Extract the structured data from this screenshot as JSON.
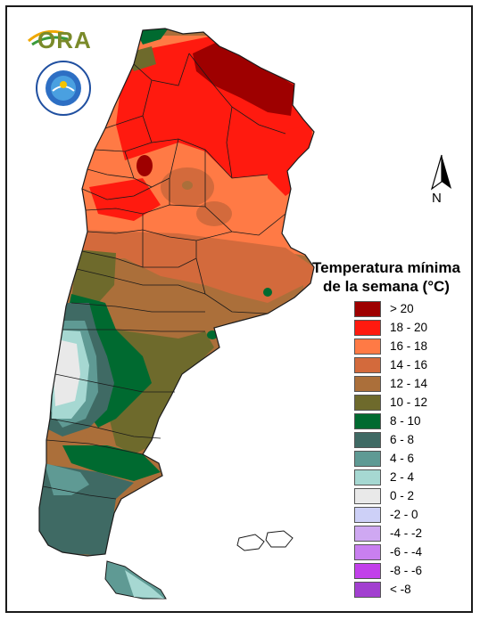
{
  "legend": {
    "title_line1": "Temperatura mínima",
    "title_line2": "de la semana (°C)",
    "items": [
      {
        "label": "> 20",
        "color": "#9e0000"
      },
      {
        "label": "18 - 20",
        "color": "#ff1a0f"
      },
      {
        "label": "16 - 18",
        "color": "#ff7a45"
      },
      {
        "label": "14 - 16",
        "color": "#d36a3c"
      },
      {
        "label": "12 - 14",
        "color": "#ab6f3a"
      },
      {
        "label": "10 - 12",
        "color": "#6e6a2c"
      },
      {
        "label": "8 - 10",
        "color": "#006a30"
      },
      {
        "label": "6 - 8",
        "color": "#3f6a64"
      },
      {
        "label": "4 - 6",
        "color": "#5f9a94"
      },
      {
        "label": "2 - 4",
        "color": "#a6d8d2"
      },
      {
        "label": "0 - 2",
        "color": "#e9e9e9"
      },
      {
        "label": "-2 - 0",
        "color": "#cdd0f7"
      },
      {
        "label": "-4 - -2",
        "color": "#cfa8f2"
      },
      {
        "label": "-6 - -4",
        "color": "#c97ff0"
      },
      {
        "label": "-8 - -6",
        "color": "#c240ea"
      },
      {
        "label": "< -8",
        "color": "#a23fd0"
      }
    ]
  },
  "logo": {
    "text": "ORA"
  },
  "north": {
    "label": "N"
  },
  "icons": [
    "ora-logo-icon",
    "smn-seal-icon",
    "north-arrow-icon"
  ]
}
